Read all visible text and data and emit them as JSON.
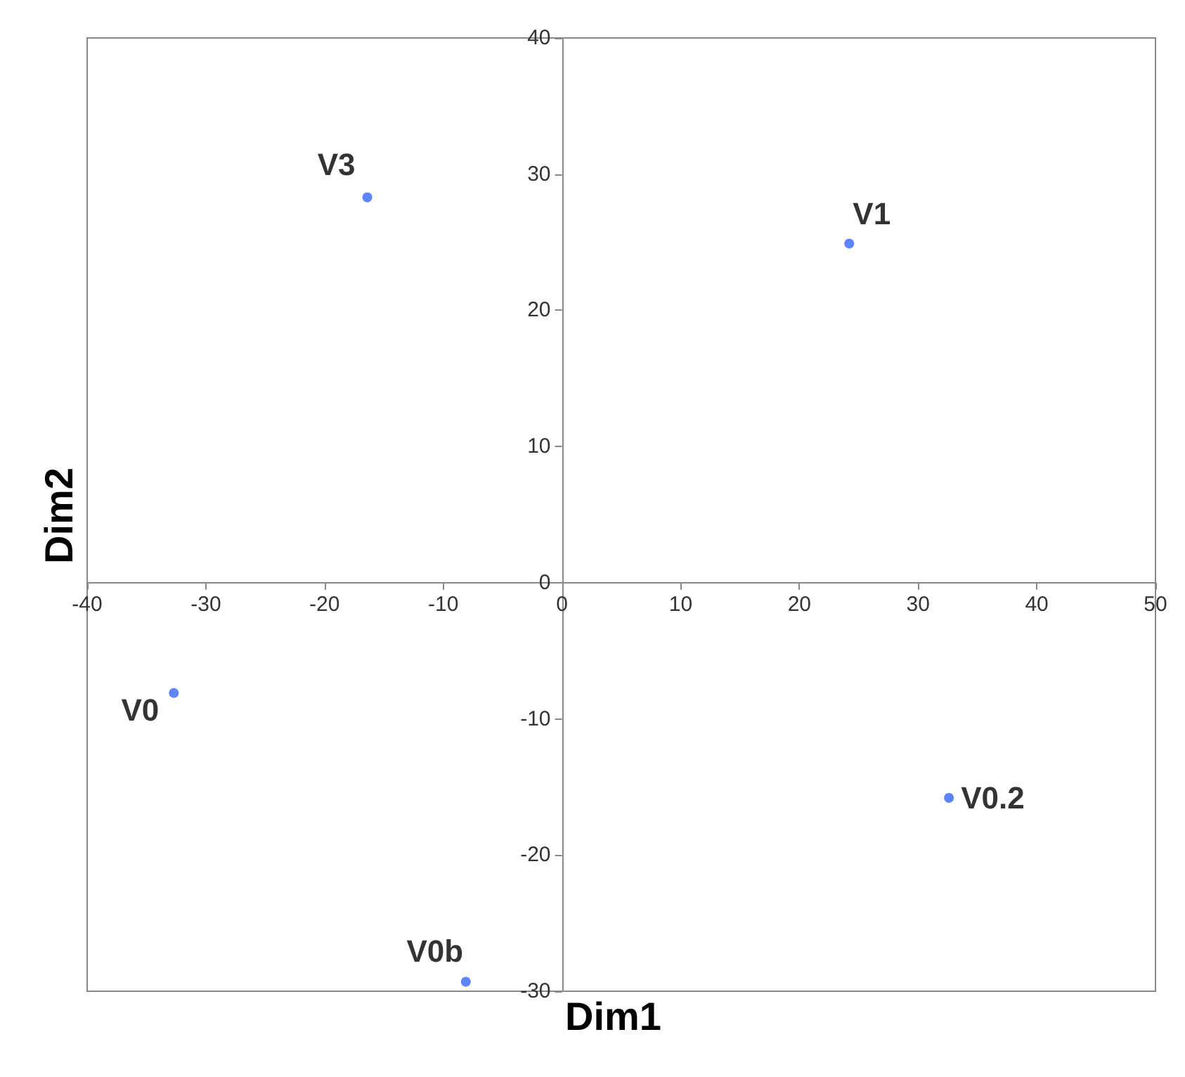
{
  "chart_data": {
    "type": "scatter",
    "xlabel": "Dim1",
    "ylabel": "Dim2",
    "series": [
      {
        "name": "V3",
        "color": "#3366ff",
        "x": [
          -16.4
        ],
        "values": [
          28.3
        ]
      },
      {
        "name": "V1",
        "color": "#3366ff",
        "x": [
          24.2
        ],
        "values": [
          24.9
        ]
      },
      {
        "name": "V0",
        "color": "#3366ff",
        "x": [
          -32.7
        ],
        "values": [
          -8.1
        ]
      },
      {
        "name": "V0.2",
        "color": "#3366ff",
        "x": [
          32.6
        ],
        "values": [
          -15.8
        ]
      },
      {
        "name": "V0b",
        "color": "#3366ff",
        "x": [
          -8.1
        ],
        "values": [
          -29.3
        ]
      }
    ],
    "xlim": [
      -40,
      50
    ],
    "ylim": [
      -30,
      40
    ],
    "xticks": [
      -40,
      -30,
      -20,
      -10,
      0,
      10,
      20,
      30,
      40,
      50
    ],
    "yticks": [
      -30,
      -20,
      -10,
      0,
      10,
      20,
      30,
      40
    ],
    "marker": "circle",
    "legend": false,
    "grid": false
  }
}
